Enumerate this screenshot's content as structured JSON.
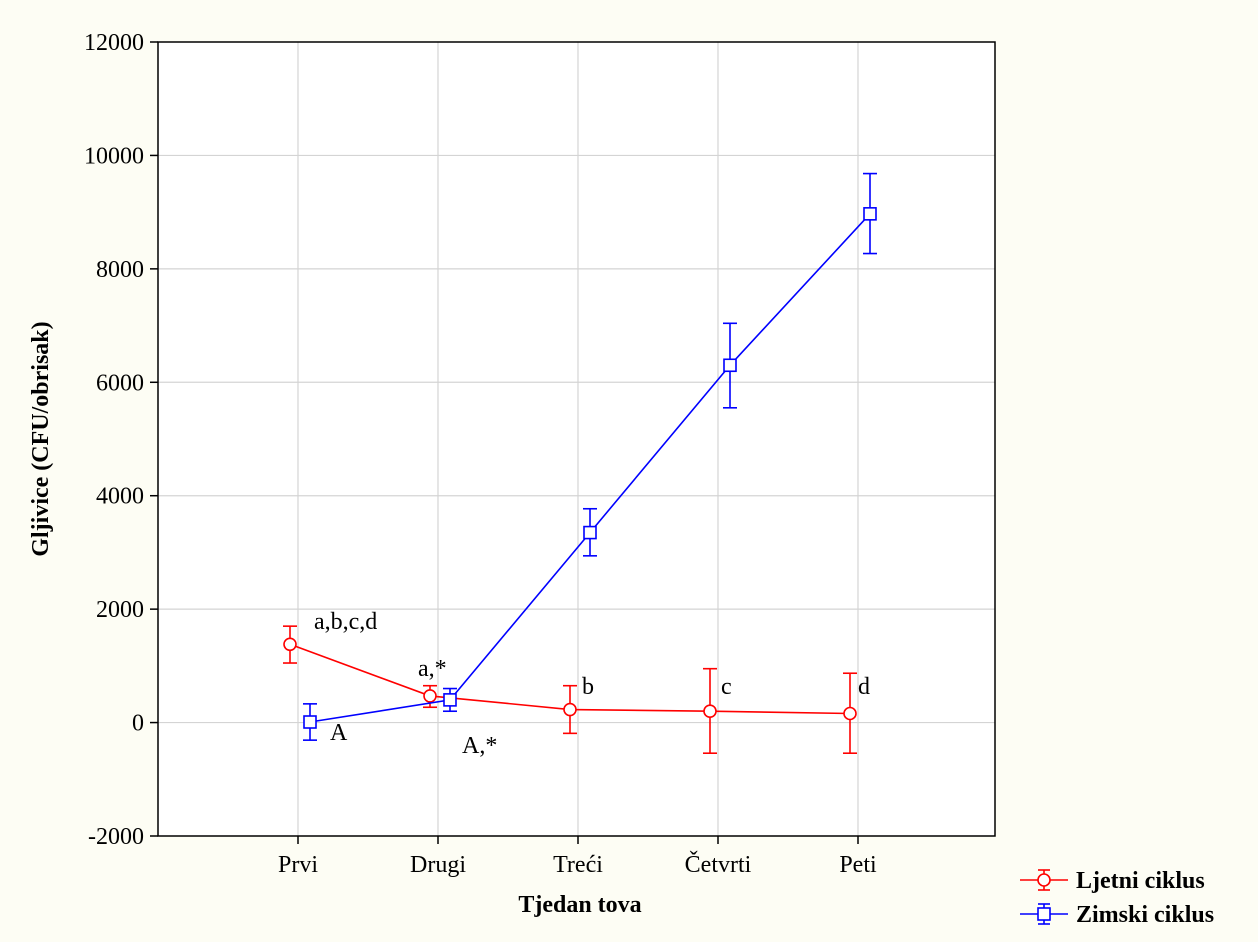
{
  "chart_data": {
    "type": "line",
    "title": "",
    "xlabel": "Tjedan tova",
    "ylabel": "Gljivice (CFU/obrisak)",
    "categories": [
      "Prvi",
      "Drugi",
      "Treći",
      "Četvrti",
      "Peti"
    ],
    "ylim": [
      -2000,
      12000
    ],
    "yticks": [
      -2000,
      0,
      2000,
      4000,
      6000,
      8000,
      10000,
      12000
    ],
    "ytick_labels": [
      "-2000",
      "0",
      "2000",
      "4000",
      "6000",
      "8000",
      "10000",
      "12000"
    ],
    "grid": true,
    "legend_position": "bottom-right",
    "series": [
      {
        "name": "Ljetni ciklus",
        "color": "#ff0000",
        "marker": "circle",
        "values": [
          1380,
          470,
          230,
          200,
          160
        ],
        "error_low": [
          1050,
          270,
          -190,
          -540,
          -540
        ],
        "error_high": [
          1700,
          650,
          650,
          950,
          870
        ],
        "annotations": [
          "a,b,c,d",
          "a,*",
          "b",
          "c",
          "d"
        ]
      },
      {
        "name": "Zimski ciklus",
        "color": "#0000ff",
        "marker": "square",
        "values": [
          10,
          400,
          3350,
          6300,
          8970
        ],
        "error_low": [
          -310,
          200,
          2940,
          5550,
          8270
        ],
        "error_high": [
          330,
          600,
          3770,
          7040,
          9680
        ],
        "annotations": [
          "A",
          "A,*",
          "",
          "",
          ""
        ]
      }
    ]
  }
}
